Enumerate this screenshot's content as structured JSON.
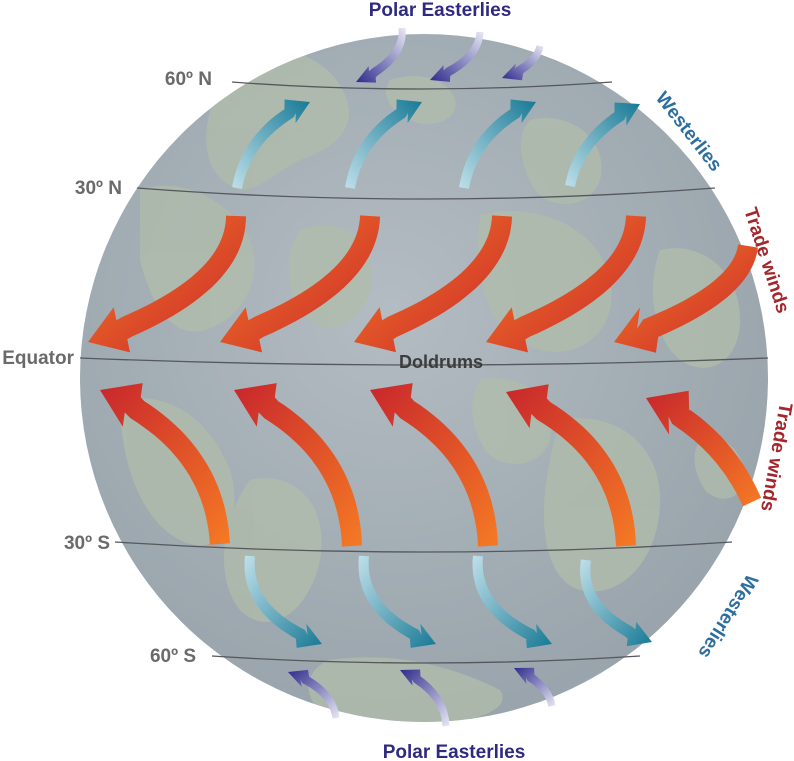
{
  "labels": {
    "polar_north": "Polar Easterlies",
    "polar_south": "Polar Easterlies",
    "westerlies_north": "Westerlies",
    "westerlies_south": "Westerlies",
    "trade_north": "Trade winds",
    "trade_south": "Trade winds",
    "doldrums": "Doldrums",
    "equator": "Equator",
    "lat_60n": "60º N",
    "lat_30n": "30º N",
    "lat_30s": "30º S",
    "lat_60s": "60º S"
  },
  "colors": {
    "globe": "#a3adb4",
    "land": "#b0bcaa",
    "polar_arrow": "#3a3596",
    "westerly_arrow": "#1f7f9e",
    "trade_arrow_dark": "#c8262c",
    "trade_arrow_light": "#f26b22"
  }
}
